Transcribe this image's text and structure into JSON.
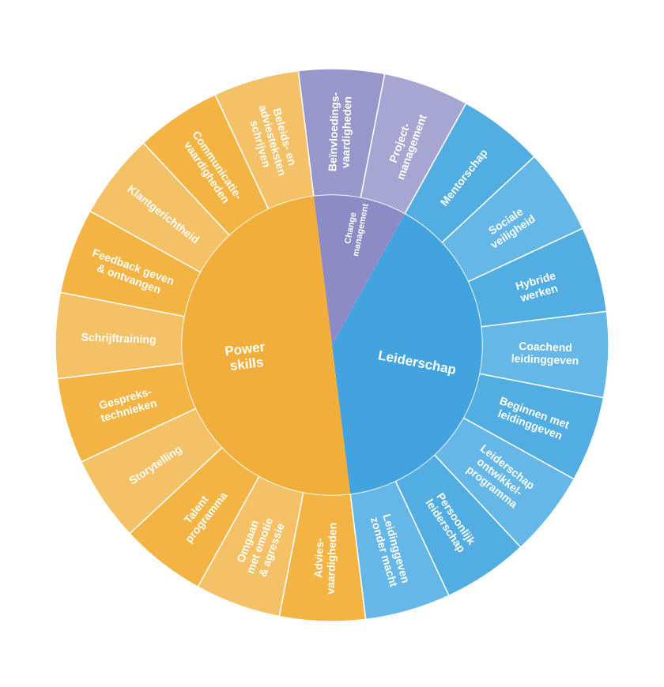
{
  "colors": {
    "orange_inner": "#F2AE3A",
    "orange_outer_a": "#F3B444",
    "orange_outer_b": "#F5C166",
    "purple_inner": "#8C8BC6",
    "purple_outer_a": "#9897CB",
    "purple_outer_b": "#A7A6D3",
    "blue_inner": "#43A3DE",
    "blue_outer_a": "#52ADE2",
    "blue_outer_b": "#64B7E6"
  },
  "categories": [
    {
      "id": "change",
      "label_lines": [
        "Change",
        "management"
      ],
      "color": "purple",
      "segments": [
        {
          "label_lines": [
            "Beïnvloedings-",
            "vaardigheden"
          ]
        },
        {
          "label_lines": [
            "Project-",
            "management"
          ]
        }
      ]
    },
    {
      "id": "leiderschap",
      "label_lines": [
        "Leiderschap"
      ],
      "color": "blue",
      "segments": [
        {
          "label_lines": [
            "Mentorschap"
          ]
        },
        {
          "label_lines": [
            "Sociale",
            "veiligheid"
          ]
        },
        {
          "label_lines": [
            "Hybride",
            "werken"
          ]
        },
        {
          "label_lines": [
            "Coachend",
            "leidinggeven"
          ]
        },
        {
          "label_lines": [
            "Beginnen met",
            "leidinggeven"
          ]
        },
        {
          "label_lines": [
            "Leiderschap",
            "ontwikkel-",
            "programma"
          ]
        },
        {
          "label_lines": [
            "Persoonlijk",
            "leiderschap"
          ]
        },
        {
          "label_lines": [
            "Leidinggeven",
            "zonder macht"
          ]
        }
      ]
    },
    {
      "id": "power",
      "label_lines": [
        "Power",
        "skills"
      ],
      "color": "orange",
      "segments": [
        {
          "label_lines": [
            "Advies-",
            "vaardigheden"
          ]
        },
        {
          "label_lines": [
            "Omgaan",
            "met emotie",
            "& agressie"
          ]
        },
        {
          "label_lines": [
            "Talent",
            "programma"
          ]
        },
        {
          "label_lines": [
            "Storytelling"
          ]
        },
        {
          "label_lines": [
            "Gespreks-",
            "technieken"
          ]
        },
        {
          "label_lines": [
            "Schrijftraining"
          ]
        },
        {
          "label_lines": [
            "Feedback geven",
            "& ontvangen"
          ]
        },
        {
          "label_lines": [
            "Klantgerichtheid"
          ]
        },
        {
          "label_lines": [
            "Communicatie-",
            "vaardigheden"
          ]
        },
        {
          "label_lines": [
            "Beleids- en",
            "adviesteksten",
            "schrijven"
          ]
        }
      ]
    }
  ]
}
